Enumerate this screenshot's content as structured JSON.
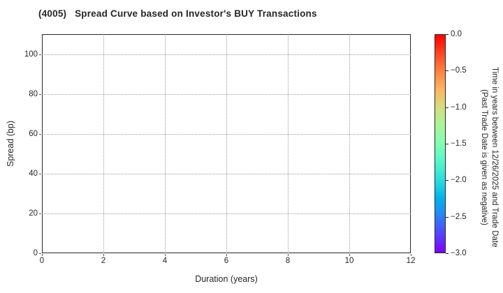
{
  "chart_data": {
    "type": "scatter",
    "title": "(4005)   Spread Curve based on Investor's BUY Transactions",
    "xlabel": "Duration (years)",
    "ylabel": "Spread (bp)",
    "xlim": [
      0,
      12
    ],
    "ylim": [
      0,
      110
    ],
    "x_ticks": [
      0,
      2,
      4,
      6,
      8,
      10,
      12
    ],
    "x_tick_labels": [
      "0",
      "2",
      "4",
      "6",
      "8",
      "10",
      "12"
    ],
    "y_ticks": [
      0,
      20,
      40,
      60,
      80,
      100
    ],
    "y_tick_labels": [
      "0",
      "20",
      "40",
      "60",
      "80",
      "100"
    ],
    "grid": true,
    "grid_style": "dotted",
    "points": [],
    "legend": null,
    "colorbar": {
      "label_line1": "Time in years between 12/26/2025 and Trade Date",
      "label_line2": "(Past Trade Date is given as negative)",
      "range": [
        -3.0,
        0.0
      ],
      "tick_values": [
        0.0,
        -0.5,
        -1.0,
        -1.5,
        -2.0,
        -2.5,
        -3.0
      ],
      "tick_labels": [
        "0.0",
        "−0.5",
        "−1.0",
        "−1.5",
        "−2.0",
        "−2.5",
        "−3.0"
      ],
      "colormap": "rainbow",
      "gradient_stops": [
        {
          "pos": 0,
          "color": "#ff0000"
        },
        {
          "pos": 8.3,
          "color": "#ff4221"
        },
        {
          "pos": 16.7,
          "color": "#ff8042"
        },
        {
          "pos": 25,
          "color": "#ffb461"
        },
        {
          "pos": 33.3,
          "color": "#d4dd80"
        },
        {
          "pos": 41.7,
          "color": "#aaf69b"
        },
        {
          "pos": 50,
          "color": "#80ffb4"
        },
        {
          "pos": 58.3,
          "color": "#55f6ca"
        },
        {
          "pos": 66.7,
          "color": "#2bddde"
        },
        {
          "pos": 75,
          "color": "#00b4ec"
        },
        {
          "pos": 83.3,
          "color": "#2b80f6"
        },
        {
          "pos": 91.7,
          "color": "#5542fd"
        },
        {
          "pos": 100,
          "color": "#8000ff"
        }
      ]
    },
    "colors": {
      "text": "#262626",
      "spine": "#262626",
      "grid": "#9e9e9e",
      "background": "#ffffff"
    }
  }
}
